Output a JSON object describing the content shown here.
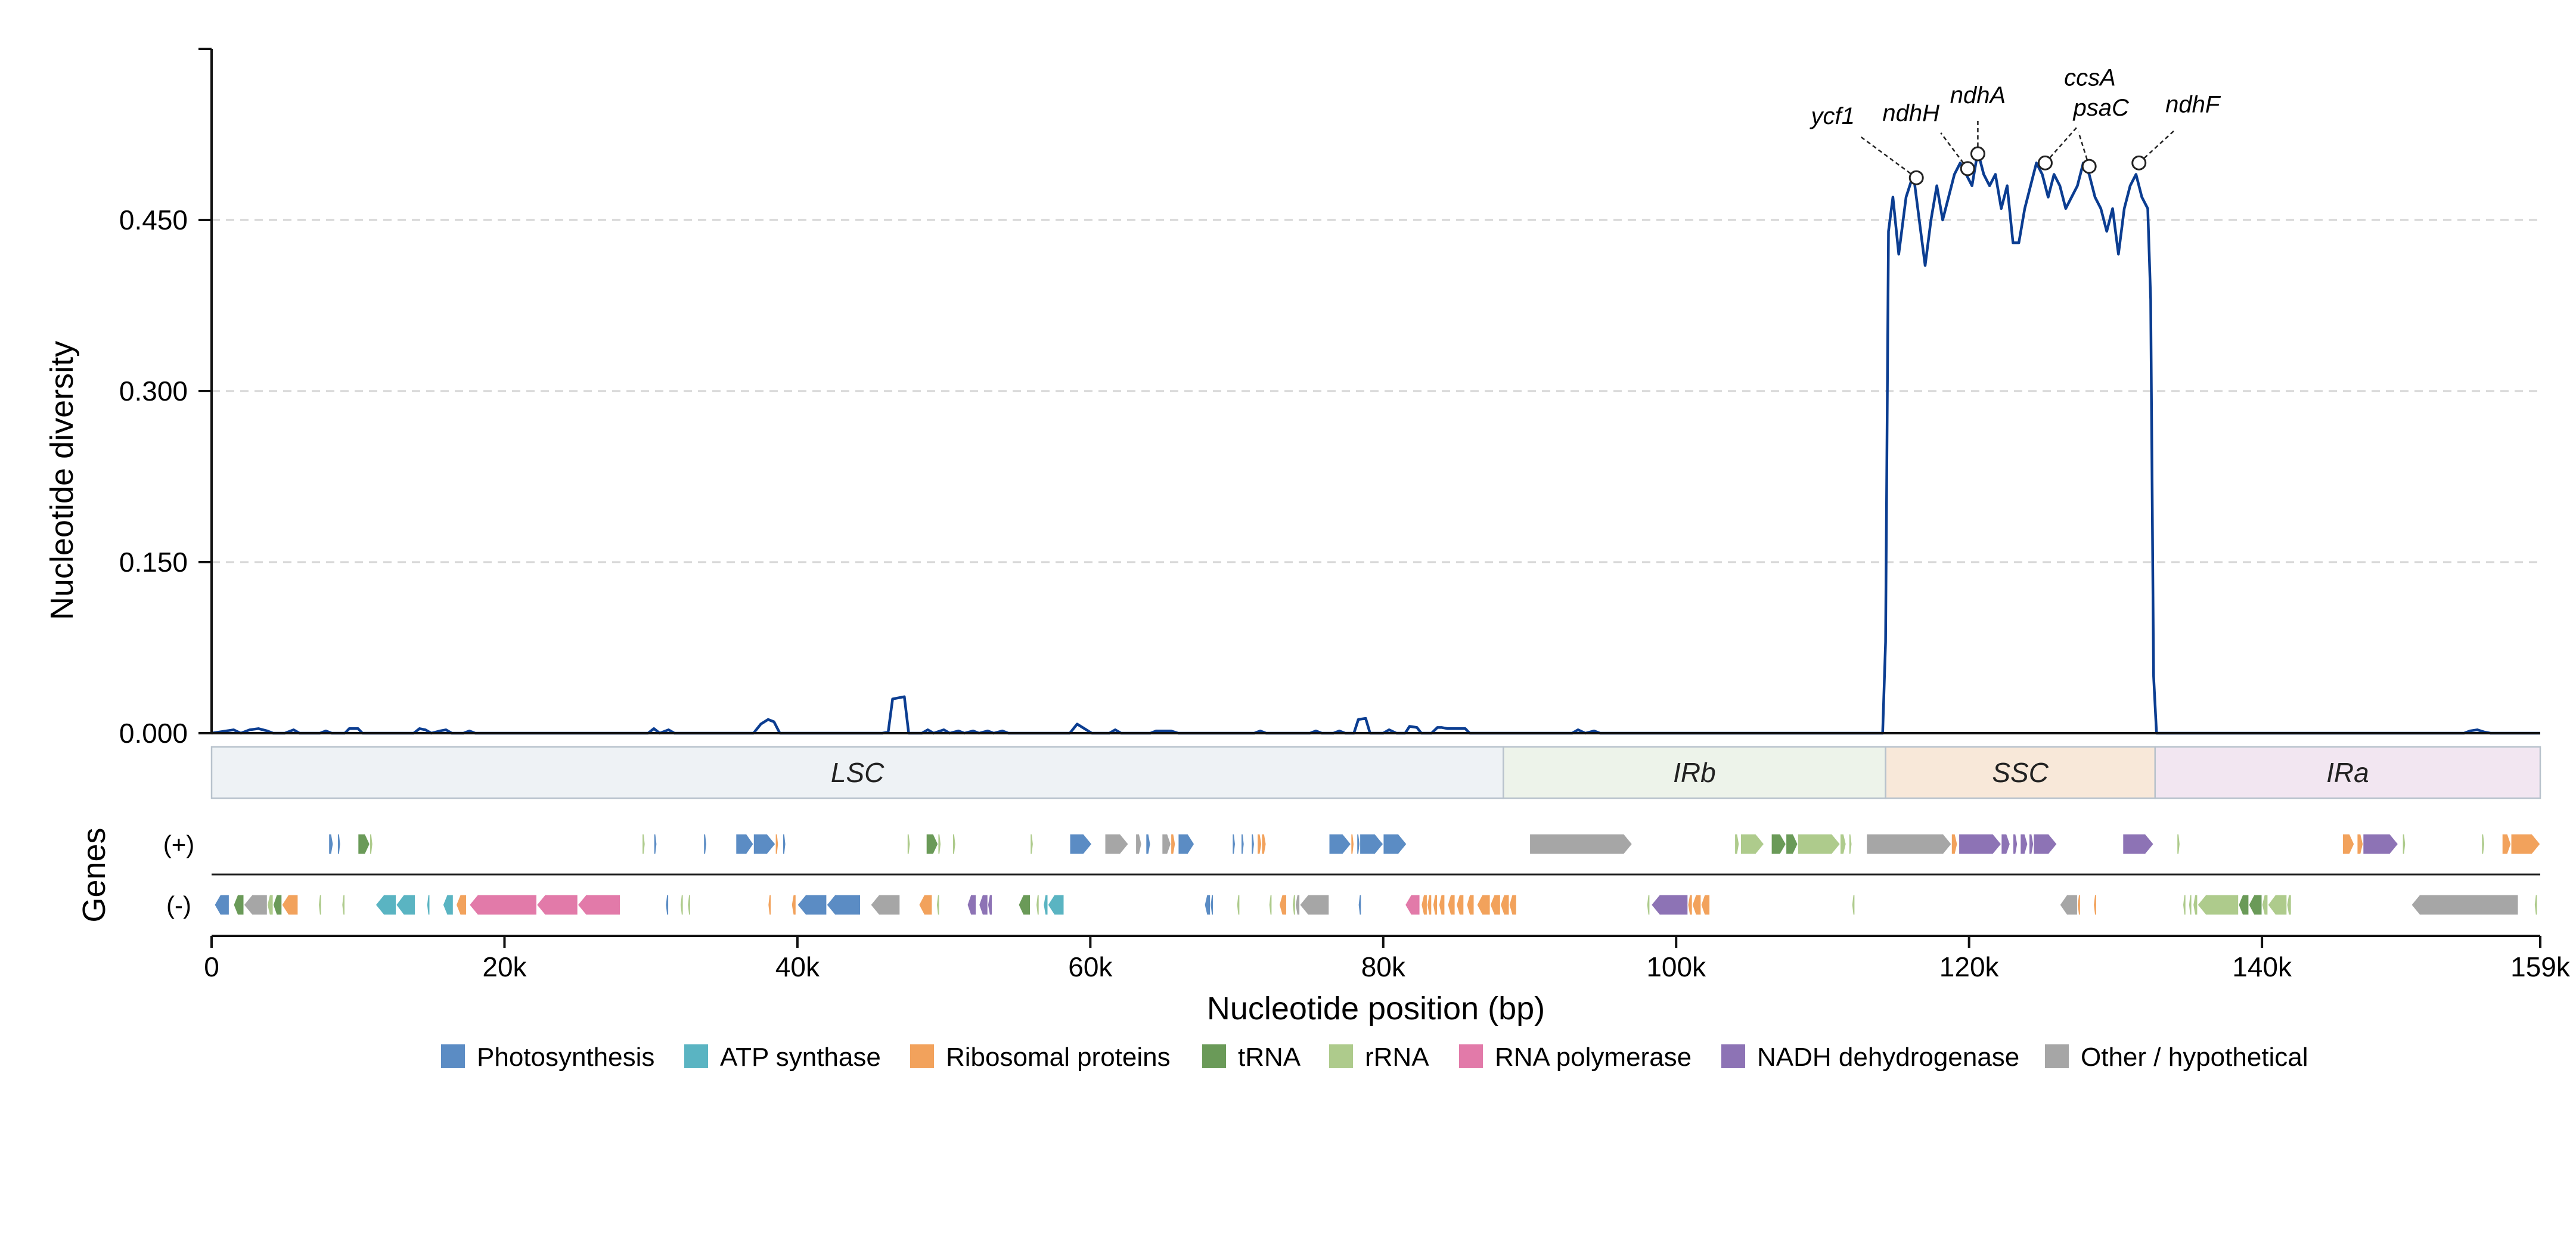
{
  "chart_data": {
    "type": "line",
    "xlabel": "Nucleotide position (bp)",
    "ylabel": "Nucleotide diversity",
    "xlim": [
      0,
      159000
    ],
    "ylim": [
      0,
      0.6
    ],
    "grid": "horizontal dashed",
    "x_ticks": [
      {
        "value": 0,
        "label": "0"
      },
      {
        "value": 20000,
        "label": "20k"
      },
      {
        "value": 40000,
        "label": "40k"
      },
      {
        "value": 60000,
        "label": "60k"
      },
      {
        "value": 80000,
        "label": "80k"
      },
      {
        "value": 100000,
        "label": "100k"
      },
      {
        "value": 120000,
        "label": "120k"
      },
      {
        "value": 140000,
        "label": "140k"
      },
      {
        "value": 159000,
        "label": "159k"
      }
    ],
    "y_ticks": [
      {
        "value": 0,
        "label": "0.000"
      },
      {
        "value": 0.15,
        "label": "0.150"
      },
      {
        "value": 0.3,
        "label": "0.300"
      },
      {
        "value": 0.45,
        "label": "0.450"
      }
    ],
    "series": [
      {
        "color": "#0b3d91",
        "points": [
          [
            0,
            0
          ],
          [
            1000,
            0.002
          ],
          [
            1500,
            0.003
          ],
          [
            2000,
            0
          ],
          [
            2600,
            0.003
          ],
          [
            3200,
            0.004
          ],
          [
            3800,
            0.002
          ],
          [
            4200,
            0
          ],
          [
            5000,
            0
          ],
          [
            5600,
            0.003
          ],
          [
            6000,
            0
          ],
          [
            7400,
            0
          ],
          [
            7800,
            0.002
          ],
          [
            8200,
            0
          ],
          [
            9100,
            0
          ],
          [
            9400,
            0.004
          ],
          [
            10000,
            0.004
          ],
          [
            10300,
            0
          ],
          [
            13800,
            0
          ],
          [
            14200,
            0.004
          ],
          [
            14600,
            0.003
          ],
          [
            15000,
            0
          ],
          [
            15600,
            0.002
          ],
          [
            16000,
            0.003
          ],
          [
            16400,
            0
          ],
          [
            17200,
            0
          ],
          [
            17600,
            0.002
          ],
          [
            18000,
            0
          ],
          [
            29800,
            0
          ],
          [
            30200,
            0.004
          ],
          [
            30600,
            0
          ],
          [
            31200,
            0.003
          ],
          [
            31600,
            0
          ],
          [
            37000,
            0
          ],
          [
            37500,
            0.008
          ],
          [
            38000,
            0.012
          ],
          [
            38400,
            0.01
          ],
          [
            38800,
            0
          ],
          [
            45800,
            0
          ],
          [
            46200,
            0.001
          ],
          [
            46500,
            0.03
          ],
          [
            47300,
            0.032
          ],
          [
            47600,
            0
          ],
          [
            48500,
            0
          ],
          [
            48900,
            0.003
          ],
          [
            49300,
            0
          ],
          [
            50000,
            0.003
          ],
          [
            50400,
            0
          ],
          [
            51000,
            0.002
          ],
          [
            51400,
            0
          ],
          [
            52000,
            0.002
          ],
          [
            52400,
            0
          ],
          [
            53000,
            0.002
          ],
          [
            53400,
            0
          ],
          [
            54000,
            0.002
          ],
          [
            54400,
            0
          ],
          [
            58600,
            0
          ],
          [
            59100,
            0.008
          ],
          [
            59600,
            0.004
          ],
          [
            60100,
            0
          ],
          [
            61300,
            0
          ],
          [
            61700,
            0.003
          ],
          [
            62100,
            0
          ],
          [
            64100,
            0
          ],
          [
            64500,
            0.002
          ],
          [
            65500,
            0.002
          ],
          [
            66000,
            0
          ],
          [
            71200,
            0
          ],
          [
            71600,
            0.002
          ],
          [
            72000,
            0
          ],
          [
            75000,
            0
          ],
          [
            75400,
            0.002
          ],
          [
            75800,
            0
          ],
          [
            76600,
            0
          ],
          [
            77000,
            0.002
          ],
          [
            77400,
            0
          ],
          [
            78000,
            0
          ],
          [
            78300,
            0.012
          ],
          [
            78800,
            0.013
          ],
          [
            79100,
            0
          ],
          [
            80000,
            0
          ],
          [
            80400,
            0.003
          ],
          [
            80900,
            0
          ],
          [
            81500,
            0
          ],
          [
            81800,
            0.006
          ],
          [
            82300,
            0.005
          ],
          [
            82600,
            0
          ],
          [
            83300,
            0
          ],
          [
            83700,
            0.005
          ],
          [
            84000,
            0.005
          ],
          [
            84400,
            0.004
          ],
          [
            85600,
            0.004
          ],
          [
            85900,
            0
          ],
          [
            92900,
            0
          ],
          [
            93300,
            0.003
          ],
          [
            93800,
            0
          ],
          [
            94400,
            0.002
          ],
          [
            94800,
            0
          ],
          [
            114100,
            0
          ],
          [
            114300,
            0.08
          ],
          [
            114500,
            0.44
          ],
          [
            114800,
            0.47
          ],
          [
            115200,
            0.42
          ],
          [
            115700,
            0.47
          ],
          [
            116200,
            0.49
          ],
          [
            116600,
            0.45
          ],
          [
            117000,
            0.41
          ],
          [
            117400,
            0.45
          ],
          [
            117800,
            0.48
          ],
          [
            118200,
            0.45
          ],
          [
            118600,
            0.47
          ],
          [
            119000,
            0.49
          ],
          [
            119400,
            0.5
          ],
          [
            119800,
            0.49
          ],
          [
            120200,
            0.48
          ],
          [
            120600,
            0.51
          ],
          [
            121000,
            0.49
          ],
          [
            121400,
            0.48
          ],
          [
            121800,
            0.49
          ],
          [
            122200,
            0.46
          ],
          [
            122600,
            0.48
          ],
          [
            123000,
            0.43
          ],
          [
            123400,
            0.43
          ],
          [
            123800,
            0.46
          ],
          [
            124200,
            0.48
          ],
          [
            124600,
            0.5
          ],
          [
            125000,
            0.49
          ],
          [
            125400,
            0.47
          ],
          [
            125800,
            0.49
          ],
          [
            126200,
            0.48
          ],
          [
            126600,
            0.46
          ],
          [
            127000,
            0.47
          ],
          [
            127400,
            0.48
          ],
          [
            127800,
            0.5
          ],
          [
            128200,
            0.49
          ],
          [
            128600,
            0.47
          ],
          [
            129000,
            0.46
          ],
          [
            129400,
            0.44
          ],
          [
            129800,
            0.46
          ],
          [
            130200,
            0.42
          ],
          [
            130600,
            0.46
          ],
          [
            131000,
            0.48
          ],
          [
            131400,
            0.49
          ],
          [
            131800,
            0.47
          ],
          [
            132200,
            0.46
          ],
          [
            132400,
            0.38
          ],
          [
            132600,
            0.05
          ],
          [
            132800,
            0
          ],
          [
            153800,
            0
          ],
          [
            154200,
            0.002
          ],
          [
            154700,
            0.003
          ],
          [
            155200,
            0.001
          ],
          [
            155600,
            0
          ],
          [
            159000,
            0
          ]
        ]
      }
    ],
    "peaks": [
      {
        "x": 116400,
        "y": 0.487,
        "label": "ycf1"
      },
      {
        "x": 119900,
        "y": 0.495,
        "label": "ndhH"
      },
      {
        "x": 120600,
        "y": 0.508,
        "label": "ndhA"
      },
      {
        "x": 125200,
        "y": 0.5,
        "label": "ccsA"
      },
      {
        "x": 128200,
        "y": 0.497,
        "label": "psaC"
      },
      {
        "x": 131600,
        "y": 0.5,
        "label": "ndhF"
      }
    ],
    "regions": [
      {
        "label": "LSC",
        "start": 0,
        "end": 88200,
        "color": "#eef2f5"
      },
      {
        "label": "IRb",
        "start": 88200,
        "end": 114300,
        "color": "#edf3ea"
      },
      {
        "label": "SSC",
        "start": 114300,
        "end": 132700,
        "color": "#f8e8d9"
      },
      {
        "label": "IRa",
        "start": 132700,
        "end": 159000,
        "color": "#f2e6f1"
      }
    ],
    "genes_label": "Genes",
    "strands": [
      {
        "label": "(+)"
      },
      {
        "label": "(-)"
      }
    ],
    "categories": [
      {
        "name": "Photosynthesis",
        "color": "#5b8cc4"
      },
      {
        "name": "ATP synthase",
        "color": "#5ab4c2"
      },
      {
        "name": "Ribosomal proteins",
        "color": "#f2a25c"
      },
      {
        "name": "tRNA",
        "color": "#6a9a58"
      },
      {
        "name": "rRNA",
        "color": "#aecb8c"
      },
      {
        "name": "RNA polymerase",
        "color": "#e27aa9"
      },
      {
        "name": "NADH dehydrogenase",
        "color": "#8d73b5"
      },
      {
        "name": "Other / hypothetical",
        "color": "#a6a6a6"
      }
    ],
    "genes_plus": [
      [
        8000,
        8300,
        0
      ],
      [
        8600,
        8800,
        0
      ],
      [
        10000,
        10800,
        3
      ],
      [
        10800,
        11000,
        4
      ],
      [
        29400,
        29600,
        4
      ],
      [
        30200,
        30400,
        0
      ],
      [
        33600,
        33800,
        0
      ],
      [
        35800,
        37000,
        0
      ],
      [
        37000,
        38500,
        0
      ],
      [
        38500,
        38700,
        2
      ],
      [
        39000,
        39200,
        0
      ],
      [
        47500,
        47700,
        4
      ],
      [
        48800,
        49600,
        3
      ],
      [
        49600,
        49800,
        4
      ],
      [
        50600,
        50800,
        4
      ],
      [
        55900,
        56100,
        4
      ],
      [
        58600,
        60100,
        0
      ],
      [
        61000,
        62600,
        7
      ],
      [
        63100,
        63500,
        7
      ],
      [
        63800,
        64100,
        0
      ],
      [
        64900,
        65500,
        7
      ],
      [
        65500,
        65800,
        2
      ],
      [
        66000,
        67100,
        0
      ],
      [
        69700,
        69900,
        0
      ],
      [
        70300,
        70500,
        0
      ],
      [
        71000,
        71200,
        0
      ],
      [
        71400,
        71700,
        2
      ],
      [
        71700,
        72000,
        2
      ],
      [
        76300,
        77800,
        0
      ],
      [
        77800,
        78000,
        2
      ],
      [
        78200,
        78400,
        0
      ],
      [
        78400,
        80000,
        0
      ],
      [
        80000,
        81600,
        0
      ],
      [
        90000,
        97000,
        7
      ],
      [
        104000,
        104300,
        4
      ],
      [
        104400,
        106000,
        4
      ],
      [
        106500,
        107500,
        3
      ],
      [
        107500,
        108300,
        3
      ],
      [
        108300,
        111200,
        4
      ],
      [
        111200,
        111600,
        4
      ],
      [
        111800,
        112000,
        4
      ],
      [
        113000,
        118800,
        7
      ],
      [
        118800,
        119200,
        2
      ],
      [
        119300,
        122200,
        6
      ],
      [
        122200,
        122800,
        6
      ],
      [
        123000,
        123300,
        6
      ],
      [
        123500,
        124000,
        6
      ],
      [
        124100,
        124400,
        6
      ],
      [
        124400,
        126000,
        6
      ],
      [
        130500,
        132600,
        6
      ],
      [
        134200,
        134400,
        4
      ],
      [
        145500,
        146300,
        2
      ],
      [
        146500,
        146900,
        2
      ],
      [
        146900,
        149300,
        6
      ],
      [
        149600,
        149800,
        4
      ],
      [
        155000,
        155200,
        4
      ],
      [
        156400,
        157000,
        2
      ],
      [
        157000,
        159000,
        2
      ]
    ],
    "genes_minus": [
      [
        200,
        1200,
        0
      ],
      [
        1500,
        2200,
        3
      ],
      [
        2200,
        3800,
        7
      ],
      [
        3800,
        4200,
        4
      ],
      [
        4200,
        4800,
        3
      ],
      [
        4800,
        5900,
        2
      ],
      [
        7300,
        7500,
        4
      ],
      [
        8900,
        9100,
        4
      ],
      [
        11200,
        12600,
        1
      ],
      [
        12600,
        13900,
        1
      ],
      [
        14700,
        14900,
        1
      ],
      [
        15800,
        16500,
        1
      ],
      [
        16700,
        17400,
        2
      ],
      [
        17600,
        22200,
        5
      ],
      [
        22200,
        25000,
        5
      ],
      [
        25000,
        27900,
        5
      ],
      [
        31000,
        31200,
        0
      ],
      [
        32000,
        32200,
        4
      ],
      [
        32500,
        32700,
        4
      ],
      [
        38000,
        38200,
        2
      ],
      [
        39600,
        39900,
        2
      ],
      [
        40000,
        42000,
        0
      ],
      [
        42000,
        44300,
        0
      ],
      [
        45000,
        47000,
        7
      ],
      [
        48300,
        49200,
        2
      ],
      [
        49500,
        49700,
        4
      ],
      [
        51600,
        52200,
        6
      ],
      [
        52400,
        53000,
        6
      ],
      [
        53000,
        53300,
        6
      ],
      [
        55100,
        55900,
        3
      ],
      [
        56300,
        56500,
        4
      ],
      [
        56800,
        57100,
        1
      ],
      [
        57100,
        58200,
        1
      ],
      [
        67800,
        68200,
        0
      ],
      [
        68200,
        68400,
        0
      ],
      [
        70000,
        70200,
        4
      ],
      [
        72200,
        72400,
        4
      ],
      [
        72900,
        73400,
        2
      ],
      [
        73800,
        74000,
        4
      ],
      [
        74000,
        74300,
        7
      ],
      [
        74300,
        76300,
        7
      ],
      [
        78300,
        78500,
        0
      ],
      [
        81500,
        82500,
        5
      ],
      [
        82600,
        83000,
        2
      ],
      [
        83000,
        83300,
        2
      ],
      [
        83400,
        83700,
        2
      ],
      [
        83800,
        84200,
        2
      ],
      [
        84400,
        84900,
        2
      ],
      [
        85000,
        85500,
        2
      ],
      [
        85700,
        86200,
        2
      ],
      [
        86400,
        87300,
        2
      ],
      [
        87300,
        88000,
        2
      ],
      [
        88000,
        88600,
        2
      ],
      [
        88600,
        89100,
        2
      ],
      [
        98000,
        98200,
        4
      ],
      [
        98300,
        100800,
        6
      ],
      [
        100800,
        101100,
        2
      ],
      [
        101100,
        101700,
        2
      ],
      [
        101700,
        102300,
        2
      ],
      [
        112000,
        112200,
        4
      ],
      [
        126200,
        127400,
        7
      ],
      [
        127400,
        127600,
        2
      ],
      [
        128500,
        128700,
        2
      ],
      [
        134600,
        134800,
        4
      ],
      [
        135000,
        135200,
        4
      ],
      [
        135300,
        135600,
        4
      ],
      [
        135600,
        138400,
        4
      ],
      [
        138400,
        139100,
        3
      ],
      [
        139100,
        140000,
        3
      ],
      [
        140000,
        140400,
        4
      ],
      [
        140400,
        141700,
        4
      ],
      [
        141700,
        142000,
        4
      ],
      [
        150200,
        157500,
        7
      ],
      [
        158600,
        158800,
        4
      ]
    ]
  }
}
